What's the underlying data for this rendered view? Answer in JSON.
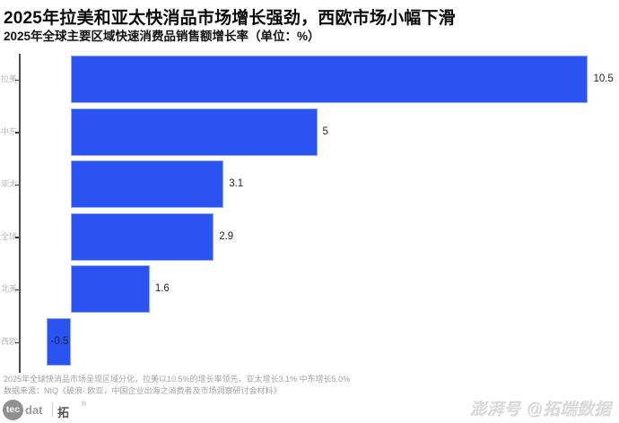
{
  "header": {
    "title": "2025年拉美和亚太快消品市场增长强劲，西欧市场小幅下滑",
    "subtitle": "2025年全球主要区域快速消费品销售额增长率（单位：%）"
  },
  "chart_data": {
    "type": "bar",
    "orientation": "horizontal",
    "title": "2025年全球主要区域快速消费品销售额增长率（单位：%）",
    "categories": [
      "拉美",
      "中东",
      "亚太",
      "全球",
      "北美",
      "西欧"
    ],
    "values": [
      10.5,
      5,
      3.1,
      2.9,
      1.6,
      -0.5
    ],
    "value_labels": [
      "10.5",
      "5",
      "3.1",
      "2.9",
      "1.6",
      "-0.5"
    ],
    "xlabel": "",
    "ylabel": "",
    "xlim": [
      -1.1,
      11
    ],
    "grid": false,
    "legend": "none",
    "bar_color": "#2B53F2",
    "bar_edge_color": "#90A8F8",
    "axis_label_color": "#b9b9b9"
  },
  "footer": {
    "note_line1": "2025年全球快消品市场呈现区域分化，拉美以10.5%的增长率领先，亚太增长3.1%  中东增长5.0%",
    "note_line2": "数据来源：NIQ《破浪· 欧亚，中国企业出海之消费者及市场洞察研讨会材料》",
    "logo_tec": "tec",
    "logo_dat": "dat",
    "logo_brand": "拓端",
    "logo_reg": "®",
    "watermark": "澎湃号 @拓端数据"
  }
}
